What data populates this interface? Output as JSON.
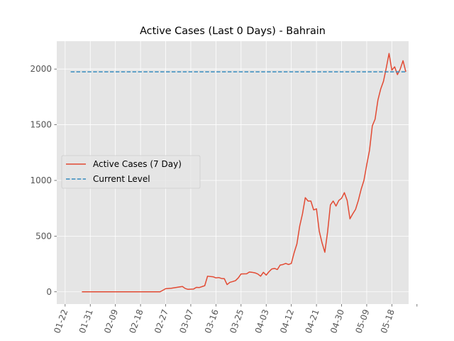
{
  "chart_data": {
    "type": "line",
    "title": "Active Cases (Last 0 Days) - Bahrain",
    "xlabel": "",
    "ylabel": "",
    "xlim": [
      "2020-01-19",
      "2020-05-24"
    ],
    "ylim": [
      -110,
      2250
    ],
    "grid": true,
    "legend_position": "center-left",
    "x_ticks": [
      "01-22",
      "01-31",
      "02-09",
      "02-18",
      "02-27",
      "03-07",
      "03-16",
      "03-25",
      "04-03",
      "04-12",
      "04-21",
      "04-30",
      "05-09",
      "05-18"
    ],
    "y_ticks": [
      0,
      500,
      1000,
      1500,
      2000
    ],
    "colors": {
      "active": "#E24A33",
      "current": "#348ABD",
      "plot_bg": "#E5E5E5",
      "grid": "#FFFFFF"
    },
    "series": [
      {
        "name": "Active Cases (7 Day)",
        "style": "solid",
        "points": [
          [
            "2020-01-28",
            0
          ],
          [
            "2020-02-05",
            0
          ],
          [
            "2020-02-13",
            0
          ],
          [
            "2020-02-21",
            0
          ],
          [
            "2020-02-25",
            0
          ],
          [
            "2020-02-27",
            28
          ],
          [
            "2020-02-29",
            32
          ],
          [
            "2020-03-02",
            40
          ],
          [
            "2020-03-04",
            48
          ],
          [
            "2020-03-05",
            30
          ],
          [
            "2020-03-06",
            22
          ],
          [
            "2020-03-08",
            25
          ],
          [
            "2020-03-09",
            40
          ],
          [
            "2020-03-10",
            38
          ],
          [
            "2020-03-12",
            55
          ],
          [
            "2020-03-13",
            140
          ],
          [
            "2020-03-15",
            135
          ],
          [
            "2020-03-16",
            125
          ],
          [
            "2020-03-17",
            128
          ],
          [
            "2020-03-18",
            120
          ],
          [
            "2020-03-19",
            118
          ],
          [
            "2020-03-20",
            65
          ],
          [
            "2020-03-21",
            85
          ],
          [
            "2020-03-22",
            92
          ],
          [
            "2020-03-23",
            100
          ],
          [
            "2020-03-24",
            125
          ],
          [
            "2020-03-25",
            160
          ],
          [
            "2020-03-27",
            162
          ],
          [
            "2020-03-28",
            178
          ],
          [
            "2020-03-29",
            175
          ],
          [
            "2020-03-30",
            170
          ],
          [
            "2020-03-31",
            160
          ],
          [
            "2020-04-01",
            140
          ],
          [
            "2020-04-02",
            175
          ],
          [
            "2020-04-03",
            150
          ],
          [
            "2020-04-04",
            180
          ],
          [
            "2020-04-05",
            205
          ],
          [
            "2020-04-06",
            210
          ],
          [
            "2020-04-07",
            200
          ],
          [
            "2020-04-08",
            240
          ],
          [
            "2020-04-09",
            245
          ],
          [
            "2020-04-10",
            255
          ],
          [
            "2020-04-11",
            245
          ],
          [
            "2020-04-12",
            255
          ],
          [
            "2020-04-13",
            350
          ],
          [
            "2020-04-14",
            430
          ],
          [
            "2020-04-15",
            590
          ],
          [
            "2020-04-16",
            700
          ],
          [
            "2020-04-17",
            845
          ],
          [
            "2020-04-18",
            815
          ],
          [
            "2020-04-19",
            815
          ],
          [
            "2020-04-20",
            735
          ],
          [
            "2020-04-21",
            745
          ],
          [
            "2020-04-22",
            545
          ],
          [
            "2020-04-23",
            440
          ],
          [
            "2020-04-24",
            355
          ],
          [
            "2020-04-25",
            540
          ],
          [
            "2020-04-26",
            780
          ],
          [
            "2020-04-27",
            815
          ],
          [
            "2020-04-28",
            770
          ],
          [
            "2020-04-29",
            820
          ],
          [
            "2020-04-30",
            840
          ],
          [
            "2020-05-01",
            890
          ],
          [
            "2020-05-02",
            820
          ],
          [
            "2020-05-03",
            655
          ],
          [
            "2020-05-04",
            700
          ],
          [
            "2020-05-05",
            740
          ],
          [
            "2020-05-06",
            820
          ],
          [
            "2020-05-07",
            920
          ],
          [
            "2020-05-08",
            1000
          ],
          [
            "2020-05-09",
            1140
          ],
          [
            "2020-05-10",
            1270
          ],
          [
            "2020-05-11",
            1490
          ],
          [
            "2020-05-12",
            1550
          ],
          [
            "2020-05-13",
            1720
          ],
          [
            "2020-05-14",
            1820
          ],
          [
            "2020-05-15",
            1890
          ],
          [
            "2020-05-16",
            2010
          ],
          [
            "2020-05-17",
            2140
          ],
          [
            "2020-05-18",
            1990
          ],
          [
            "2020-05-19",
            2020
          ],
          [
            "2020-05-20",
            1950
          ],
          [
            "2020-05-21",
            2000
          ],
          [
            "2020-05-22",
            2075
          ],
          [
            "2020-05-23",
            1975
          ]
        ]
      },
      {
        "name": "Current Level",
        "style": "dashed",
        "points": [
          [
            "2020-01-24",
            1975
          ],
          [
            "2020-05-23",
            1975
          ]
        ]
      }
    ]
  }
}
